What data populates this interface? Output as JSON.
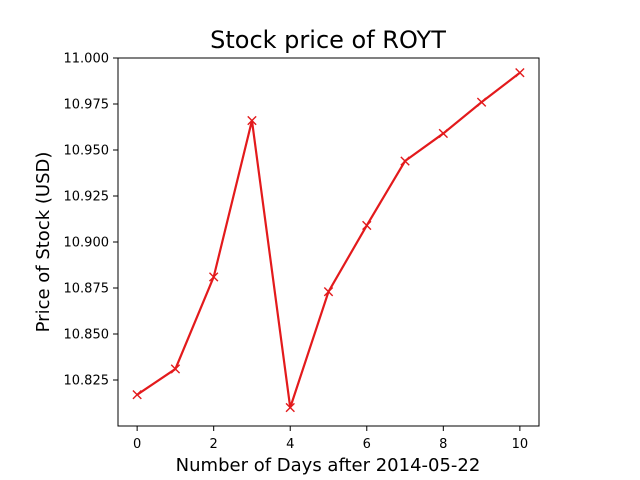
{
  "chart_data": {
    "type": "line",
    "title": "Stock price of ROYT",
    "xlabel": "Number of Days after 2014-05-22",
    "ylabel": "Price of Stock (USD)",
    "x": [
      0,
      1,
      2,
      3,
      4,
      5,
      6,
      7,
      8,
      9,
      10
    ],
    "series": [
      {
        "values": [
          10.817,
          10.831,
          10.881,
          10.966,
          10.81,
          10.873,
          10.909,
          10.944,
          10.959,
          10.976,
          10.992
        ],
        "color": "#e31a1c",
        "marker": "x"
      }
    ],
    "xlim": [
      -0.5,
      10.5
    ],
    "ylim": [
      10.8,
      11.0
    ],
    "xticks": [
      0,
      2,
      4,
      6,
      8,
      10
    ],
    "yticks": [
      10.825,
      10.85,
      10.875,
      10.9,
      10.925,
      10.95,
      10.975,
      11.0
    ],
    "xtick_labels": [
      "0",
      "2",
      "4",
      "6",
      "8",
      "10"
    ],
    "ytick_labels": [
      "10.825",
      "10.850",
      "10.875",
      "10.900",
      "10.925",
      "10.950",
      "10.975",
      "11.000"
    ],
    "grid": false,
    "legend": "none"
  }
}
